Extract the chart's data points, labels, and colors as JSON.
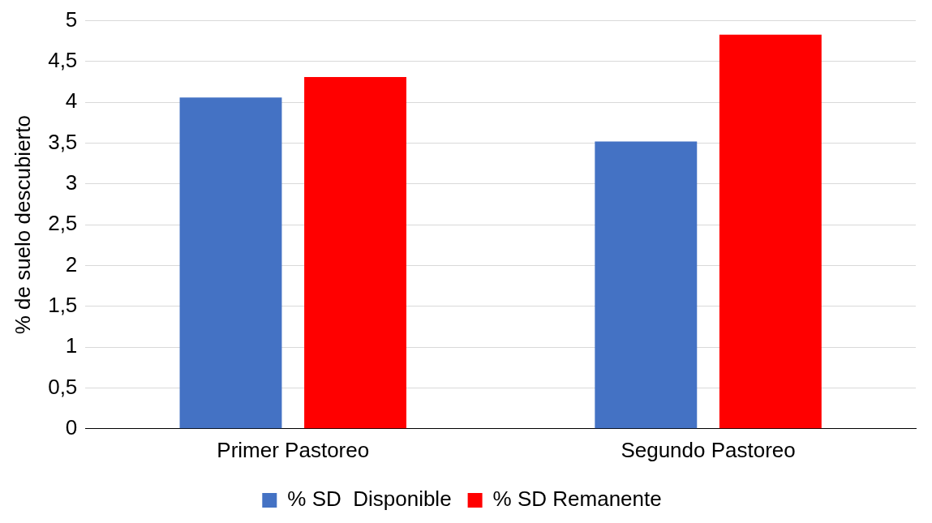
{
  "chart_data": {
    "type": "bar",
    "ylabel": "% de suelo descubierto",
    "categories": [
      "Primer Pastoreo",
      "Segundo Pastoreo"
    ],
    "series": [
      {
        "name": "% SD  Disponible",
        "color": "#4472c4",
        "values": [
          4.06,
          3.52
        ]
      },
      {
        "name": "% SD Remanente",
        "color": "#ff0000",
        "values": [
          4.31,
          4.83
        ]
      }
    ],
    "ylim": [
      0,
      5
    ],
    "yticks": [
      0,
      {
        "value": 0.5,
        "label": "0,5"
      },
      1,
      {
        "value": 1.5,
        "label": "1,5"
      },
      2,
      {
        "value": 2.5,
        "label": "2,5"
      },
      3,
      {
        "value": 3.5,
        "label": "3,5"
      },
      4,
      {
        "value": 4.5,
        "label": "4,5"
      },
      5
    ],
    "grid": "y",
    "legend": "bottom"
  }
}
